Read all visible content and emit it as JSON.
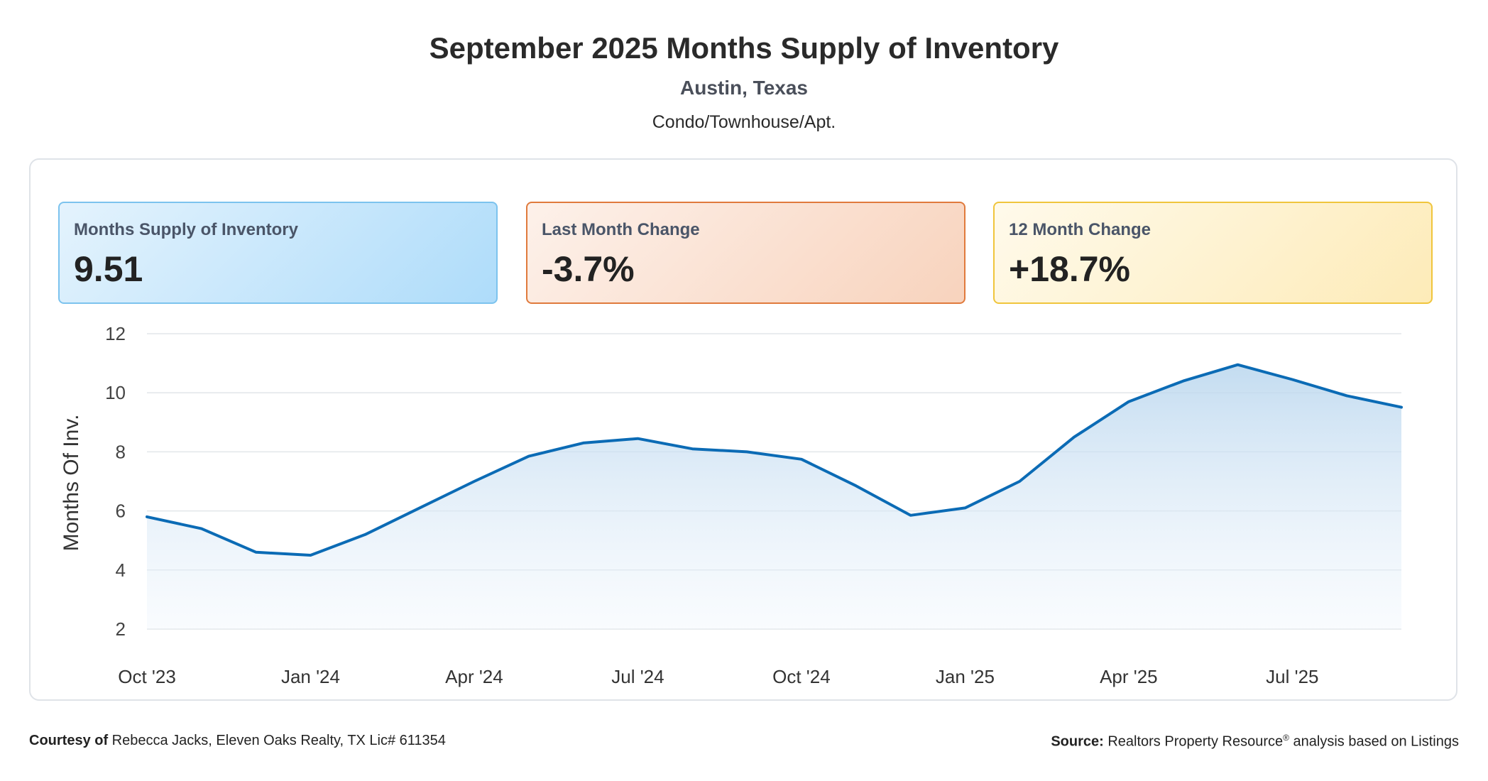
{
  "header": {
    "title": "September 2025 Months Supply of Inventory",
    "subtitle": "Austin, Texas",
    "property_type": "Condo/Townhouse/Apt."
  },
  "cards": [
    {
      "label": "Months Supply of Inventory",
      "value": "9.51",
      "accent": "#7cc3ee"
    },
    {
      "label": "Last Month Change",
      "value": "-3.7%",
      "accent": "#e07a3c"
    },
    {
      "label": "12 Month Change",
      "value": "+18.7%",
      "accent": "#f0c53c"
    }
  ],
  "chart_data": {
    "type": "area",
    "ylabel": "Months Of Inv.",
    "ylim": [
      2,
      12
    ],
    "yticks": [
      2,
      4,
      6,
      8,
      10,
      12
    ],
    "xtick_labels": [
      "Oct '23",
      "Jan '24",
      "Apr '24",
      "Jul '24",
      "Oct '24",
      "Jan '25",
      "Apr '25",
      "Jul '25"
    ],
    "x": [
      "Oct '23",
      "Nov '23",
      "Dec '23",
      "Jan '24",
      "Feb '24",
      "Mar '24",
      "Apr '24",
      "May '24",
      "Jun '24",
      "Jul '24",
      "Aug '24",
      "Sep '24",
      "Oct '24",
      "Nov '24",
      "Dec '24",
      "Jan '25",
      "Feb '25",
      "Mar '25",
      "Apr '25",
      "May '25",
      "Jun '25",
      "Jul '25",
      "Aug '25",
      "Sep '25"
    ],
    "values": [
      5.8,
      5.4,
      4.6,
      4.5,
      5.2,
      6.1,
      7.0,
      7.85,
      8.3,
      8.45,
      8.1,
      8.0,
      7.75,
      6.85,
      5.85,
      6.1,
      7.0,
      8.5,
      9.7,
      10.4,
      10.95,
      10.45,
      9.9,
      9.51
    ],
    "grid": true,
    "line_color": "#0b6bb5",
    "fill_color": "#cfe3f3"
  },
  "footer": {
    "courtesy_label": "Courtesy of",
    "courtesy_text": " Rebecca Jacks, Eleven Oaks Realty, TX Lic# 611354",
    "source_label": "Source:",
    "source_text": " Realtors Property Resource",
    "source_mark": "®",
    "source_suffix": " analysis based on Listings"
  }
}
